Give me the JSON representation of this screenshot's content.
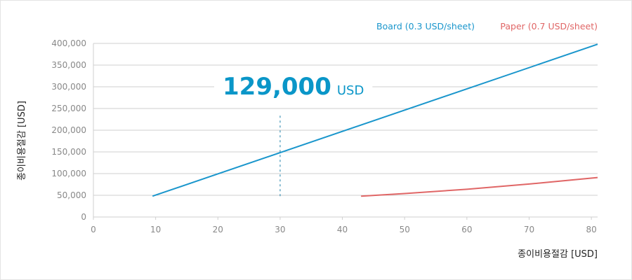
{
  "chart_data": {
    "type": "line",
    "xlabel": "종이비용절감 [USD]",
    "ylabel": "종이비용절감 [USD]",
    "xlim": [
      0,
      81
    ],
    "ylim": [
      0,
      400000
    ],
    "xticks": [
      "0",
      "10",
      "20",
      "30",
      "40",
      "50",
      "60",
      "70",
      "80"
    ],
    "yticks": [
      "0",
      "50,000",
      "100,000",
      "150,000",
      "200,000",
      "250,000",
      "300,000",
      "350,000",
      "400,000"
    ],
    "grid": true,
    "legend_position": "top-right",
    "series": [
      {
        "name": "Board (0.3 USD/sheet)",
        "color": "#1a96cc",
        "x": [
          9.5,
          81
        ],
        "y": [
          48000,
          398000
        ]
      },
      {
        "name": "Paper (0.7 USD/sheet)",
        "color": "#e06666",
        "x": [
          43,
          50,
          60,
          70,
          81
        ],
        "y": [
          48000,
          54000,
          64000,
          76000,
          91000
        ]
      }
    ],
    "annotation": {
      "value": "129,000",
      "unit": "USD",
      "x": 30,
      "y_from": 48000,
      "y_to": 260000,
      "color": "#0a96c8"
    }
  }
}
